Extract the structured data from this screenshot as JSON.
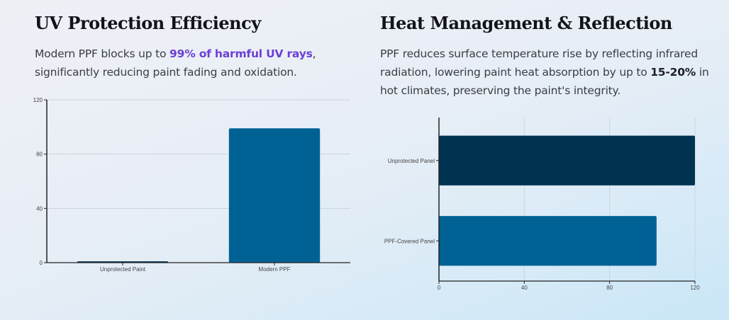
{
  "sections": {
    "uv": {
      "title": "UV Protection Efficiency",
      "desc_pre": "Modern PPF blocks up to ",
      "desc_highlight": "99% of harmful UV rays",
      "desc_post": ", significantly reducing paint fading and oxidation."
    },
    "heat": {
      "title": "Heat Management & Reflection",
      "desc_pre": "PPF reduces surface temperature rise by reflecting infrared radiation, lowering paint heat absorption by up to ",
      "desc_highlight": "15-20%",
      "desc_post": " in hot climates, preserving the paint's integrity."
    }
  },
  "colors": {
    "dark_navy": "#003352",
    "ocean_blue": "#006294",
    "highlight_purple": "#6b3fd4"
  },
  "chart_data": [
    {
      "type": "bar",
      "orientation": "vertical",
      "title": "",
      "categories": [
        "Unprotected Paint",
        "Modern PPF"
      ],
      "values": [
        1,
        99
      ],
      "colors": [
        "#003352",
        "#006294"
      ],
      "xlabel": "",
      "ylabel": "",
      "ylim": [
        0,
        120
      ],
      "yticks": [
        0,
        40,
        80,
        120
      ],
      "grid": true
    },
    {
      "type": "bar",
      "orientation": "horizontal",
      "title": "",
      "categories": [
        "Unprotected Panel",
        "PPF-Covered Panel"
      ],
      "values": [
        120,
        102
      ],
      "colors": [
        "#003352",
        "#006294"
      ],
      "xlabel": "",
      "ylabel": "",
      "xlim": [
        0,
        120
      ],
      "xticks": [
        0,
        40,
        80,
        120
      ],
      "grid": true
    }
  ]
}
